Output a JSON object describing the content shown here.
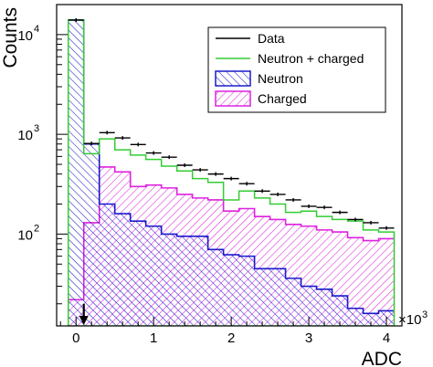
{
  "chart_data": {
    "type": "histogram",
    "title": "",
    "xlabel": "ADC",
    "ylabel": "Counts",
    "x_multiplier_label": "×10",
    "x_multiplier_exponent": "3",
    "x_range": [
      -0.25,
      4.2
    ],
    "x_ticks": [
      0,
      1,
      2,
      3,
      4
    ],
    "y_scale": "log",
    "y_range": [
      12,
      20000
    ],
    "y_ticks": [
      {
        "value": 100,
        "base": "10",
        "exp": "2"
      },
      {
        "value": 1000,
        "base": "10",
        "exp": "3"
      },
      {
        "value": 10000,
        "base": "10",
        "exp": "4"
      }
    ],
    "grid": false,
    "legend_position": "top-right",
    "legend": [
      {
        "label": "Data",
        "style": "line",
        "color": "#000000"
      },
      {
        "label": "Neutron + charged",
        "style": "line",
        "color": "#33cc33"
      },
      {
        "label": "Neutron",
        "style": "hatch",
        "color": "#1a1acc"
      },
      {
        "label": "Charged",
        "style": "hatch",
        "color": "#dd22dd"
      }
    ],
    "threshold_arrow": {
      "x": 0.1,
      "color": "#000000"
    },
    "bin_edges": [
      -0.1,
      0.1,
      0.3,
      0.5,
      0.7,
      0.9,
      1.1,
      1.3,
      1.5,
      1.7,
      1.9,
      2.1,
      2.3,
      2.5,
      2.7,
      2.9,
      3.1,
      3.3,
      3.5,
      3.7,
      3.9,
      4.1
    ],
    "series": [
      {
        "name": "Data",
        "kind": "points",
        "color": "#000000",
        "x": [
          0.0,
          0.2,
          0.4,
          0.6,
          0.8,
          1.0,
          1.2,
          1.4,
          1.6,
          1.8,
          2.0,
          2.2,
          2.4,
          2.6,
          2.8,
          3.0,
          3.2,
          3.4,
          3.6,
          3.8,
          4.0
        ],
        "y": [
          14000,
          810,
          1040,
          920,
          790,
          650,
          590,
          490,
          440,
          400,
          360,
          320,
          270,
          250,
          220,
          190,
          185,
          165,
          140,
          130,
          115
        ]
      },
      {
        "name": "Neutron + charged",
        "kind": "step",
        "color": "#33cc33",
        "y": [
          14000,
          640,
          900,
          700,
          620,
          560,
          480,
          430,
          360,
          330,
          220,
          270,
          230,
          200,
          165,
          170,
          150,
          140,
          135,
          110,
          105
        ]
      },
      {
        "name": "Neutron",
        "kind": "hatch",
        "color": "#1a1acc",
        "y": [
          14000,
          800,
          200,
          160,
          135,
          120,
          100,
          95,
          95,
          70,
          62,
          60,
          45,
          45,
          36,
          30,
          28,
          24,
          18,
          16,
          17
        ]
      },
      {
        "name": "Charged",
        "kind": "hatch",
        "color": "#dd22dd",
        "y": [
          22,
          130,
          470,
          420,
          300,
          310,
          290,
          250,
          230,
          220,
          170,
          180,
          150,
          140,
          125,
          120,
          110,
          105,
          92,
          86,
          90
        ]
      }
    ]
  }
}
